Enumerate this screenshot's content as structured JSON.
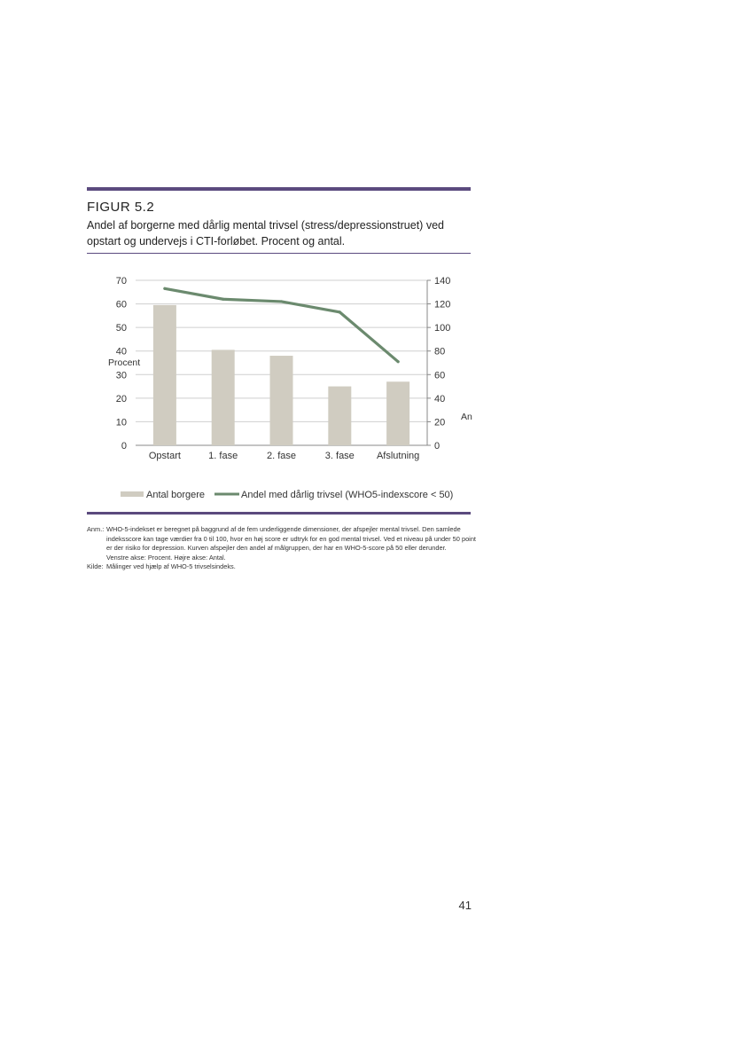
{
  "figure": {
    "label": "FIGUR 5.2",
    "title": "Andel af borgerne med dårlig mental trivsel (stress/depressionstruet) ved opstart og undervejs i CTI-forløbet. Procent og antal."
  },
  "chart_data": {
    "type": "bar",
    "categories": [
      "Opstart",
      "1. fase",
      "2. fase",
      "3. fase",
      "Afslutning"
    ],
    "series": [
      {
        "name": "Antal borgere",
        "type": "bar",
        "axis": "left",
        "values": [
          59.5,
          40.5,
          38,
          25,
          27
        ],
        "color": "#d0ccc1"
      },
      {
        "name": "Andel med dårlig trivsel (WHO5-indexscore < 50)",
        "type": "line",
        "axis": "right",
        "values": [
          133,
          124,
          122,
          113,
          71
        ],
        "color": "#6b8a6e"
      }
    ],
    "y_left": {
      "label": "Procent",
      "lim": [
        0,
        70
      ],
      "ticks": [
        "0",
        "10",
        "20",
        "30",
        "40",
        "50",
        "60",
        "70"
      ]
    },
    "y_right": {
      "label": "An",
      "lim": [
        0,
        140
      ],
      "ticks": [
        "0",
        "20",
        "40",
        "60",
        "80",
        "100",
        "120",
        "140"
      ]
    },
    "grid": true,
    "legend": "bottom"
  },
  "notes": [
    {
      "key": "Anm.:",
      "lines": [
        "WHO-5-indekset er beregnet på baggrund af de fem underliggende dimensioner, der afspejler mental trivsel. Den samlede indeksscore kan tage værdier fra 0 til 100, hvor en høj score er udtryk for en god mental trivsel. Ved et niveau på under 50 point er der risiko for depression. Kurven afspejler den andel af målgruppen, der har en WHO-5-score på 50 eller derunder.",
        "Venstre akse: Procent. Højre akse: Antal."
      ]
    },
    {
      "key": "Kilde:",
      "lines": [
        "Målinger ved hjælp af WHO-5 trivselsindeks."
      ]
    }
  ],
  "page_number": "41"
}
